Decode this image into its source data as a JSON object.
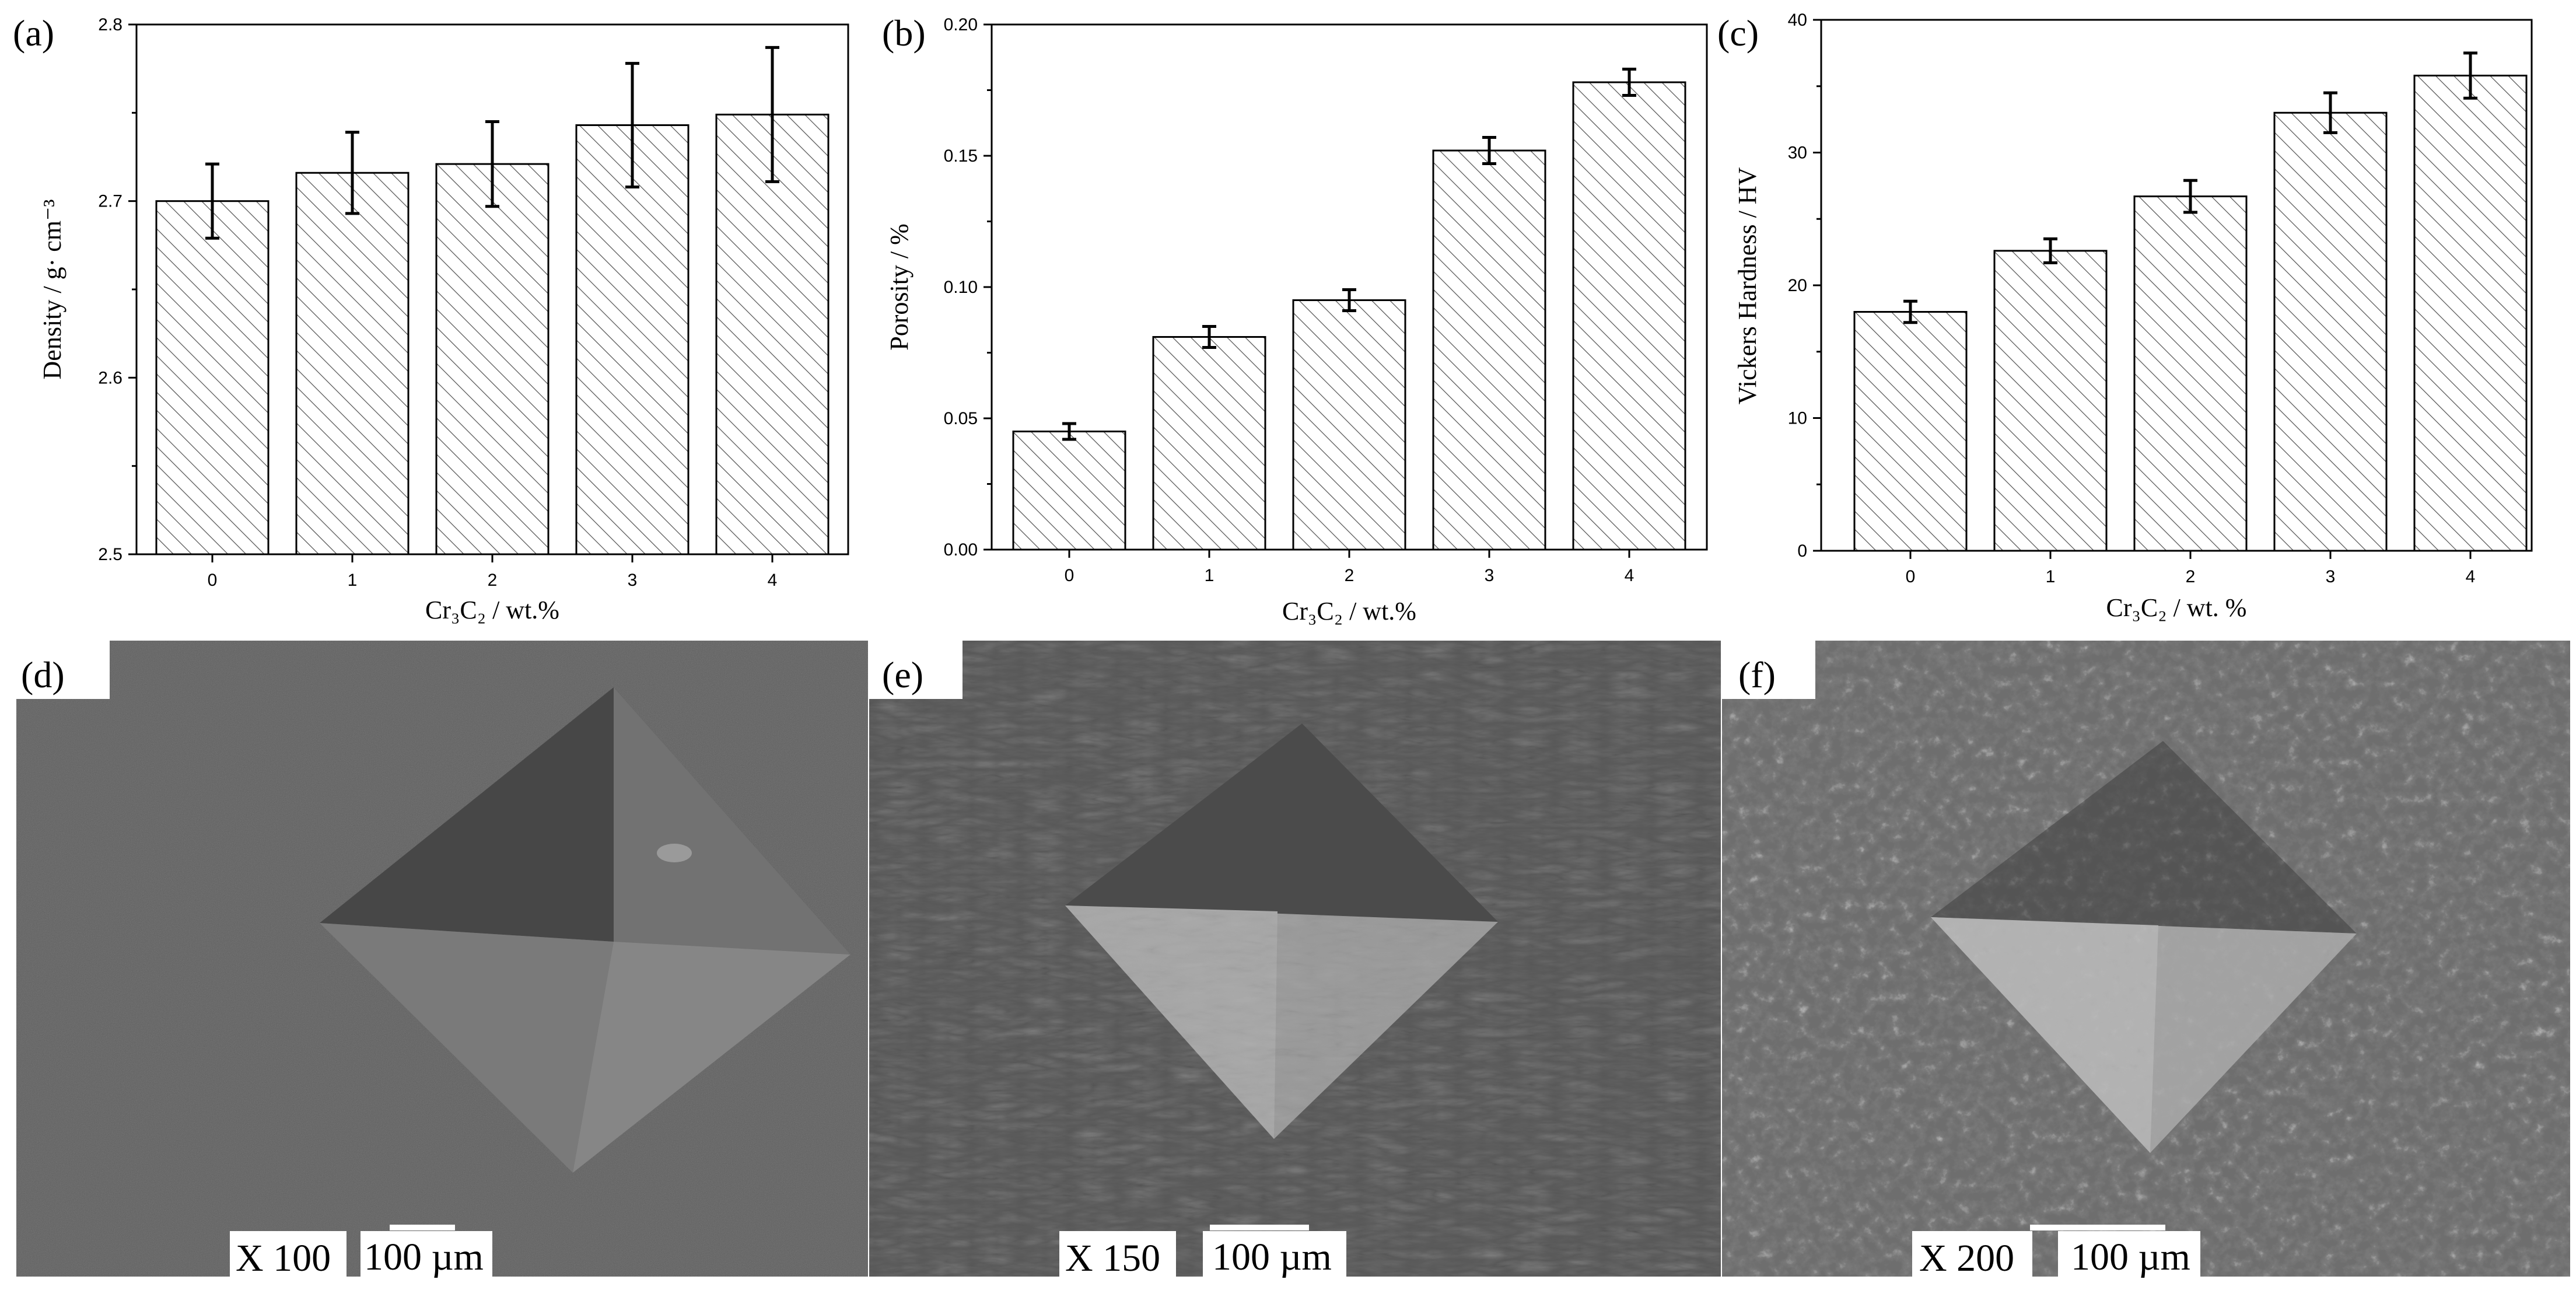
{
  "panels": {
    "a": "(a)",
    "b": "(b)",
    "c": "(c)",
    "d": "(d)",
    "e": "(e)",
    "f": "(f)"
  },
  "chart_data": [
    {
      "type": "bar",
      "panel": "(a)",
      "categories": [
        "0",
        "1",
        "2",
        "3",
        "4"
      ],
      "values": [
        2.7,
        2.716,
        2.721,
        2.743,
        2.749
      ],
      "errors": [
        0.021,
        0.023,
        0.024,
        0.035,
        0.038
      ],
      "ylim": [
        2.5,
        2.8
      ],
      "yticks": [
        "2.5",
        "2.6",
        "2.7",
        "2.8"
      ],
      "ylabel": "Density / g· cm⁻³",
      "xlabel": "Cr₃C₂ / wt.%",
      "fill": "diagonal hatch",
      "bar_color": "#ffffff"
    },
    {
      "type": "bar",
      "panel": "(b)",
      "categories": [
        "0",
        "1",
        "2",
        "3",
        "4"
      ],
      "values": [
        0.045,
        0.081,
        0.095,
        0.152,
        0.178
      ],
      "errors": [
        0.003,
        0.004,
        0.004,
        0.005,
        0.005
      ],
      "ylim": [
        0.0,
        0.2
      ],
      "yticks": [
        "0.00",
        "0.05",
        "0.10",
        "0.15",
        "0.20"
      ],
      "ylabel": "Porosity / %",
      "xlabel": "Cr₃C₂ / wt.%",
      "fill": "diagonal hatch",
      "bar_color": "#ffffff"
    },
    {
      "type": "bar",
      "panel": "(c)",
      "categories": [
        "0",
        "1",
        "2",
        "3",
        "4"
      ],
      "values": [
        18.0,
        22.6,
        26.7,
        33.0,
        35.8
      ],
      "errors": [
        0.8,
        0.9,
        1.2,
        1.5,
        1.7
      ],
      "ylim": [
        0,
        40
      ],
      "yticks": [
        "0",
        "10",
        "20",
        "30",
        "40"
      ],
      "ylabel": "Vickers Hardness / HV",
      "xlabel": "Cr₃C₂ / wt. %",
      "fill": "diagonal hatch",
      "bar_color": "#ffffff"
    }
  ],
  "sem": [
    {
      "panel": "(d)",
      "mag": "X 100",
      "scale": "100 µm",
      "bg": "#5e5e5e"
    },
    {
      "panel": "(e)",
      "mag": "X 150",
      "scale": "100 µm",
      "bg": "#5a5a5a"
    },
    {
      "panel": "(f)",
      "mag": "X 200",
      "scale": "100 µm",
      "bg": "#707070"
    }
  ]
}
